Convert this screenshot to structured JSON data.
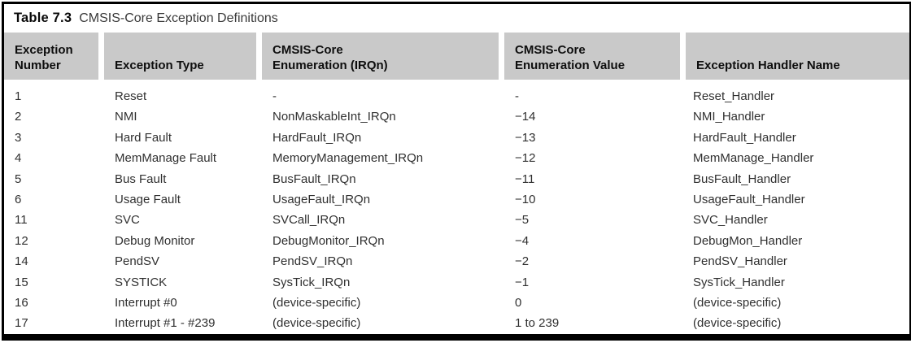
{
  "table": {
    "caption": {
      "label": "Table 7.3",
      "title": "CMSIS-Core Exception Definitions"
    },
    "columns": [
      {
        "id": "exception-number",
        "label": "Exception\nNumber"
      },
      {
        "id": "exception-type",
        "label": "Exception Type"
      },
      {
        "id": "cmsis-core-enumeration-irqn",
        "label": "CMSIS-Core\nEnumeration (IRQn)"
      },
      {
        "id": "cmsis-core-enumeration-value",
        "label": "CMSIS-Core\nEnumeration Value"
      },
      {
        "id": "exception-handler-name",
        "label": "Exception Handler Name"
      }
    ],
    "rows": [
      [
        "1",
        "Reset",
        "-",
        "-",
        "Reset_Handler"
      ],
      [
        "2",
        "NMI",
        "NonMaskableInt_IRQn",
        "−14",
        "NMI_Handler"
      ],
      [
        "3",
        "Hard Fault",
        "HardFault_IRQn",
        "−13",
        "HardFault_Handler"
      ],
      [
        "4",
        "MemManage Fault",
        "MemoryManagement_IRQn",
        "−12",
        "MemManage_Handler"
      ],
      [
        "5",
        "Bus Fault",
        "BusFault_IRQn",
        "−11",
        "BusFault_Handler"
      ],
      [
        "6",
        "Usage Fault",
        "UsageFault_IRQn",
        "−10",
        "UsageFault_Handler"
      ],
      [
        "11",
        "SVC",
        "SVCall_IRQn",
        "−5",
        "SVC_Handler"
      ],
      [
        "12",
        "Debug Monitor",
        "DebugMonitor_IRQn",
        "−4",
        "DebugMon_Handler"
      ],
      [
        "14",
        "PendSV",
        "PendSV_IRQn",
        "−2",
        "PendSV_Handler"
      ],
      [
        "15",
        "SYSTICK",
        "SysTick_IRQn",
        "−1",
        "SysTick_Handler"
      ],
      [
        "16",
        "Interrupt #0",
        "(device-specific)",
        "0",
        "(device-specific)"
      ],
      [
        "17",
        "Interrupt #1 - #239",
        "(device-specific)",
        "1 to 239",
        "(device-specific)"
      ]
    ],
    "colors": {
      "header_bg": "#c9c9c9",
      "border": "#000000",
      "body_text": "#303030"
    }
  }
}
